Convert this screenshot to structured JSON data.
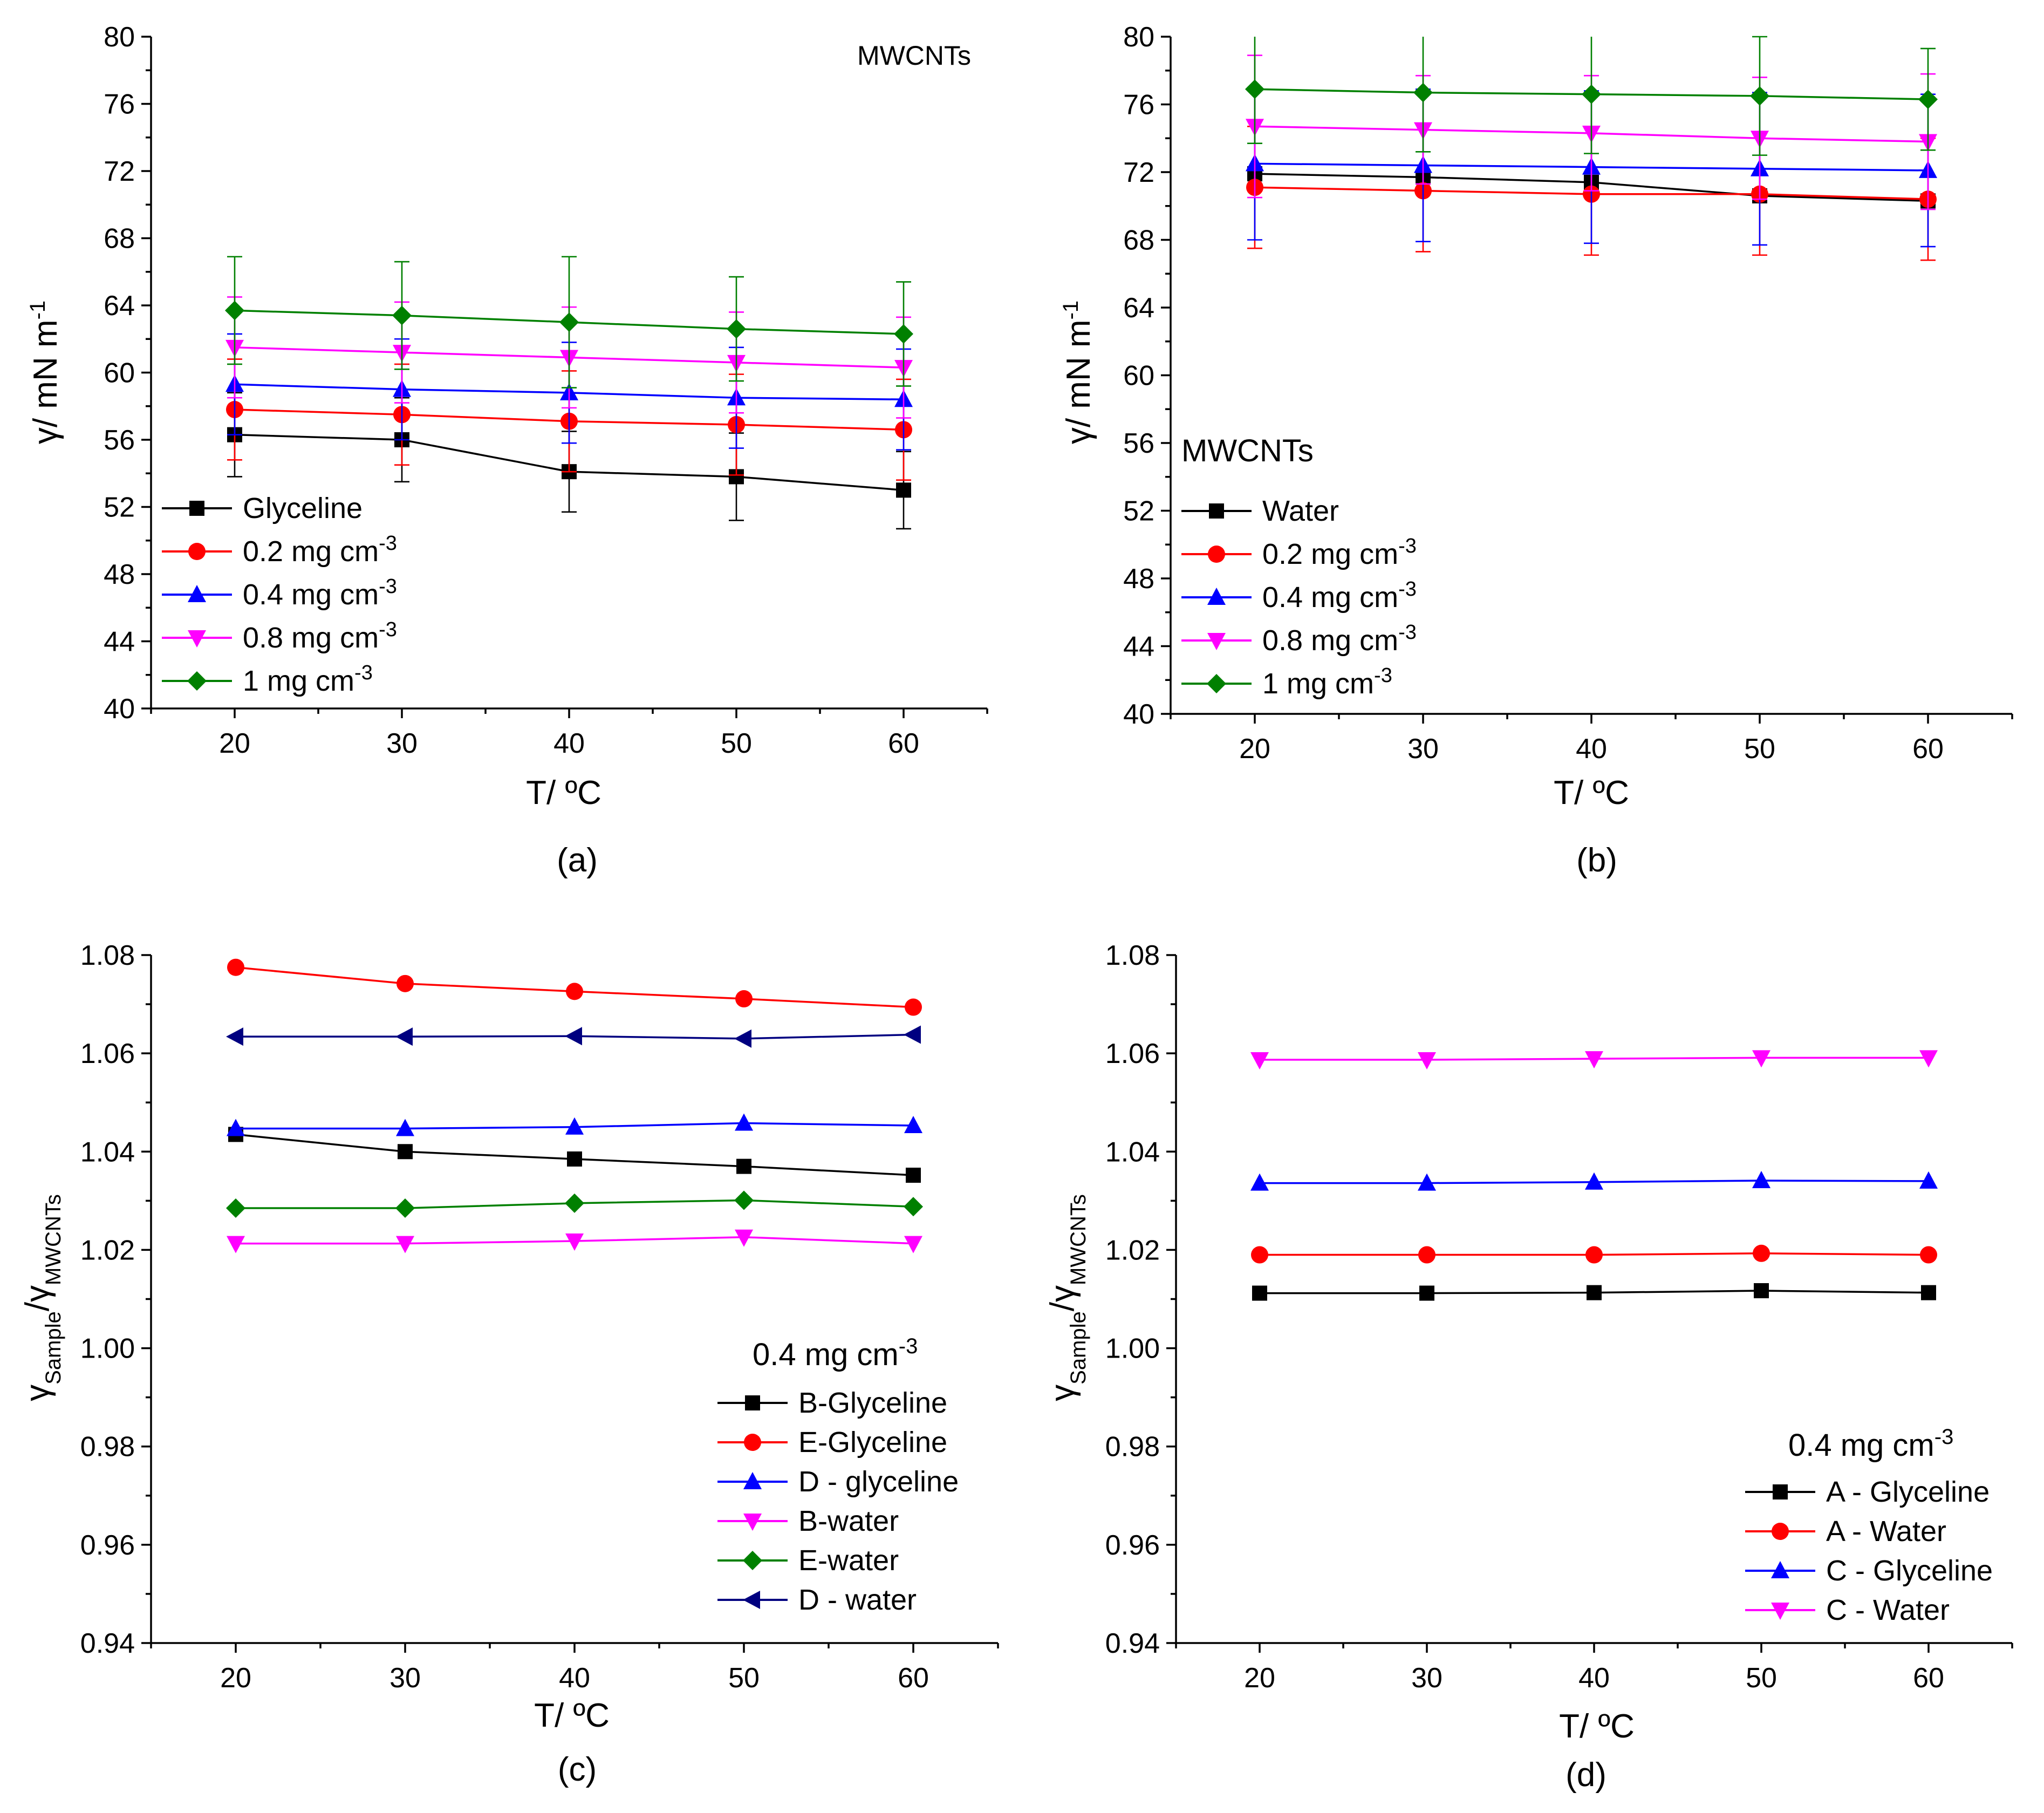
{
  "chart_data": [
    {
      "id": "a",
      "type": "line",
      "caption": "(a)",
      "xlabel": "T/ ºC",
      "ylabel": "γ/ mN m",
      "ylabel_sup": "-1",
      "xlim": [
        15,
        65
      ],
      "ylim": [
        40,
        80
      ],
      "x": [
        20,
        30,
        40,
        50,
        60
      ],
      "xticks": [
        "20",
        "30",
        "40",
        "50",
        "60"
      ],
      "yticks": [
        "40",
        "44",
        "48",
        "52",
        "56",
        "60",
        "64",
        "68",
        "72",
        "76",
        "80"
      ],
      "annotation": "MWCNTs",
      "legend_title": "",
      "series": [
        {
          "name": "Glyceline",
          "name_sup": "",
          "color": "#000000",
          "marker": "square",
          "values": [
            56.3,
            56.0,
            54.1,
            53.8,
            53.0
          ],
          "error": [
            2.5,
            2.5,
            2.4,
            2.6,
            2.3
          ]
        },
        {
          "name": "0.2 mg cm",
          "name_sup": "-3",
          "color": "#ff0000",
          "marker": "circle",
          "values": [
            57.8,
            57.5,
            57.1,
            56.9,
            56.6
          ],
          "error": [
            3.0,
            3.0,
            3.0,
            3.0,
            3.0
          ]
        },
        {
          "name": "0.4 mg cm",
          "name_sup": "-3",
          "color": "#0000ff",
          "marker": "triangle-up",
          "values": [
            59.3,
            59.0,
            58.8,
            58.5,
            58.4
          ],
          "error": [
            3.0,
            3.0,
            3.0,
            3.0,
            3.0
          ]
        },
        {
          "name": "0.8 mg cm",
          "name_sup": "-3",
          "color": "#ff00ff",
          "marker": "triangle-down",
          "values": [
            61.5,
            61.2,
            60.9,
            60.6,
            60.3
          ],
          "error": [
            3.0,
            3.0,
            3.0,
            3.0,
            3.0
          ]
        },
        {
          "name": "1 mg cm",
          "name_sup": "-3",
          "color": "#008000",
          "marker": "diamond",
          "values": [
            63.7,
            63.4,
            63.0,
            62.6,
            62.3
          ],
          "error": [
            3.2,
            3.2,
            3.9,
            3.1,
            3.1
          ]
        }
      ]
    },
    {
      "id": "b",
      "type": "line",
      "caption": "(b)",
      "xlabel": "T/ ºC",
      "ylabel": "γ/ mN m",
      "ylabel_sup": "-1",
      "xlim": [
        15,
        65
      ],
      "ylim": [
        40,
        80
      ],
      "x": [
        20,
        30,
        40,
        50,
        60
      ],
      "xticks": [
        "20",
        "30",
        "40",
        "50",
        "60"
      ],
      "yticks": [
        "40",
        "44",
        "48",
        "52",
        "56",
        "60",
        "64",
        "68",
        "72",
        "76",
        "80"
      ],
      "annotation": "",
      "legend_title": "MWCNTs",
      "series": [
        {
          "name": "Water",
          "name_sup": "",
          "color": "#000000",
          "marker": "square",
          "values": [
            71.9,
            71.7,
            71.4,
            70.6,
            70.3
          ],
          "error": [
            0.4,
            0.4,
            0.4,
            0.4,
            0.4
          ]
        },
        {
          "name": "0.2 mg cm",
          "name_sup": "-3",
          "color": "#ff0000",
          "marker": "circle",
          "values": [
            71.1,
            70.9,
            70.7,
            70.7,
            70.4
          ],
          "error": [
            3.6,
            3.6,
            3.6,
            3.6,
            3.6
          ]
        },
        {
          "name": "0.4 mg cm",
          "name_sup": "-3",
          "color": "#0000ff",
          "marker": "triangle-up",
          "values": [
            72.5,
            72.4,
            72.3,
            72.2,
            72.1
          ],
          "error": [
            4.5,
            4.5,
            4.5,
            4.5,
            4.5
          ]
        },
        {
          "name": "0.8 mg cm",
          "name_sup": "-3",
          "color": "#ff00ff",
          "marker": "triangle-down",
          "values": [
            74.7,
            74.5,
            74.3,
            74.0,
            73.8
          ],
          "error": [
            4.2,
            3.2,
            3.4,
            3.6,
            4.0
          ]
        },
        {
          "name": "1 mg cm",
          "name_sup": "-3",
          "color": "#008000",
          "marker": "diamond",
          "values": [
            76.9,
            76.7,
            76.6,
            76.5,
            76.3
          ],
          "error": [
            3.2,
            3.5,
            3.5,
            3.5,
            3.0
          ]
        }
      ]
    },
    {
      "id": "c",
      "type": "line",
      "caption": "(c)",
      "xlabel": "T/ ºC",
      "ylabel": "γ",
      "ylabel_sub1": "Sample",
      "ylabel_mid": "/γ",
      "ylabel_sub2": "MWCNTs",
      "xlim": [
        15,
        65
      ],
      "ylim": [
        0.94,
        1.08
      ],
      "x": [
        20,
        30,
        40,
        50,
        60
      ],
      "xticks": [
        "20",
        "30",
        "40",
        "50",
        "60"
      ],
      "yticks": [
        "0.94",
        "0.96",
        "0.98",
        "1.00",
        "1.02",
        "1.04",
        "1.06",
        "1.08"
      ],
      "annotation": "",
      "legend_title": "0.4 mg cm",
      "legend_title_sup": "-3",
      "series": [
        {
          "name": "B-Glyceline",
          "color": "#000000",
          "marker": "square",
          "values": [
            1.0435,
            1.04,
            1.0385,
            1.037,
            1.0352
          ]
        },
        {
          "name": "E-Glyceline",
          "color": "#ff0000",
          "marker": "circle",
          "values": [
            1.0775,
            1.0742,
            1.0726,
            1.0711,
            1.0694
          ]
        },
        {
          "name": "D - glyceline",
          "color": "#0000ff",
          "marker": "triangle-up",
          "values": [
            1.0447,
            1.0447,
            1.045,
            1.0458,
            1.0453
          ]
        },
        {
          "name": "B-water",
          "color": "#ff00ff",
          "marker": "triangle-down",
          "values": [
            1.0213,
            1.0213,
            1.0218,
            1.0226,
            1.0213
          ]
        },
        {
          "name": "E-water",
          "color": "#008000",
          "marker": "diamond",
          "values": [
            1.0285,
            1.0285,
            1.0295,
            1.0301,
            1.0288
          ]
        },
        {
          "name": "D - water",
          "color": "#000080",
          "marker": "triangle-left",
          "values": [
            1.0634,
            1.0634,
            1.0635,
            1.063,
            1.0638
          ]
        }
      ]
    },
    {
      "id": "d",
      "type": "line",
      "caption": "(d)",
      "xlabel": "T/ ºC",
      "ylabel": "γ",
      "ylabel_sub1": "Sample",
      "ylabel_mid": "/γ",
      "ylabel_sub2": "MWCNTs",
      "xlim": [
        15,
        65
      ],
      "ylim": [
        0.94,
        1.08
      ],
      "x": [
        20,
        30,
        40,
        50,
        60
      ],
      "xticks": [
        "20",
        "30",
        "40",
        "50",
        "60"
      ],
      "yticks": [
        "0.94",
        "0.96",
        "0.98",
        "1.00",
        "1.02",
        "1.04",
        "1.06",
        "1.08"
      ],
      "annotation": "",
      "legend_title": "0.4 mg cm",
      "legend_title_sup": "-3",
      "series": [
        {
          "name": "A - Glyceline",
          "color": "#000000",
          "marker": "square",
          "values": [
            1.0112,
            1.0112,
            1.0113,
            1.0117,
            1.0113
          ]
        },
        {
          "name": "A - Water",
          "color": "#ff0000",
          "marker": "circle",
          "values": [
            1.019,
            1.019,
            1.019,
            1.0193,
            1.019
          ]
        },
        {
          "name": "C - Glyceline",
          "color": "#0000ff",
          "marker": "triangle-up",
          "values": [
            1.0336,
            1.0336,
            1.0338,
            1.0341,
            1.034
          ]
        },
        {
          "name": "C - Water",
          "color": "#ff00ff",
          "marker": "triangle-down",
          "values": [
            1.0587,
            1.0587,
            1.0589,
            1.0591,
            1.0591
          ]
        }
      ]
    }
  ]
}
